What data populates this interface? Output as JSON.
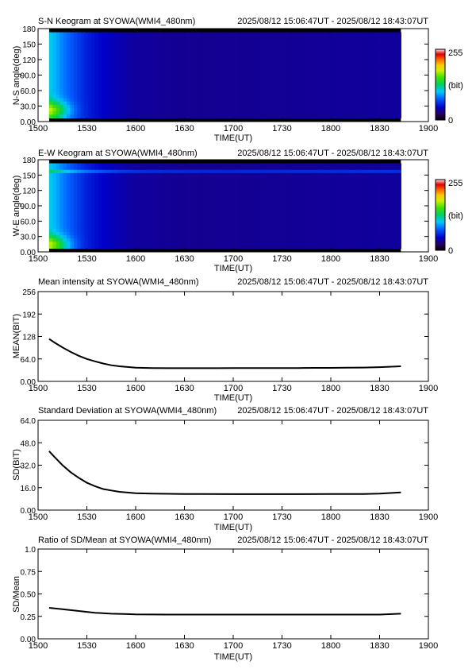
{
  "chart_data": [
    {
      "type": "heatmap",
      "title": "S-N Keogram at SYOWA(WMI4_480nm)",
      "time_range": "2025/08/12 15:06:47UT - 2025/08/12 18:43:07UT",
      "xlabel": "TIME(UT)",
      "ylabel": "N-S angle(deg)",
      "xlim": [
        0,
        240
      ],
      "ylim": [
        0,
        180
      ],
      "x_ticks": [
        0,
        30,
        60,
        90,
        120,
        150,
        180,
        210,
        240
      ],
      "x_tick_labels": [
        "1500",
        "1530",
        "1600",
        "1630",
        "1700",
        "1730",
        "1800",
        "1830",
        "1900"
      ],
      "y_ticks": [
        0,
        30,
        60,
        90,
        120,
        150,
        180
      ],
      "y_tick_labels": [
        "0.00",
        "30.0",
        "60.0",
        "90.0",
        "120",
        "150",
        "180"
      ],
      "data_x_range": [
        6.8,
        223.1
      ],
      "data_y_range": [
        7,
        173
      ],
      "colorbar": {
        "labels": [
          "255",
          "(bit)",
          "0"
        ],
        "range": [
          0,
          255
        ]
      },
      "hot_spot": {
        "x": 7,
        "y": 22
      },
      "hot_line_y": null,
      "intensity_profile": {
        "time": [
          6.8,
          10,
          15,
          20,
          25,
          30,
          40,
          50,
          60,
          80,
          100,
          150,
          223.1
        ],
        "level": [
          110,
          98,
          85,
          74,
          64,
          56,
          46,
          40,
          36,
          34,
          33,
          34,
          36
        ]
      }
    },
    {
      "type": "heatmap",
      "title": "E-W Keogram at SYOWA(WMI4_480nm)",
      "time_range": "2025/08/12 15:06:47UT - 2025/08/12 18:43:07UT",
      "xlabel": "TIME(UT)",
      "ylabel": "W-E angle(deg)",
      "xlim": [
        0,
        240
      ],
      "ylim": [
        0,
        180
      ],
      "x_ticks": [
        0,
        30,
        60,
        90,
        120,
        150,
        180,
        210,
        240
      ],
      "x_tick_labels": [
        "1500",
        "1530",
        "1600",
        "1630",
        "1700",
        "1730",
        "1800",
        "1830",
        "1900"
      ],
      "y_ticks": [
        0,
        30,
        60,
        90,
        120,
        150,
        180
      ],
      "y_tick_labels": [
        "0.00",
        "30.0",
        "60.0",
        "90.0",
        "120",
        "150",
        "180"
      ],
      "data_x_range": [
        6.8,
        223.1
      ],
      "data_y_range": [
        7,
        173
      ],
      "colorbar": {
        "labels": [
          "255",
          "(bit)",
          "0"
        ],
        "range": [
          0,
          255
        ]
      },
      "hot_spot": {
        "x": 7,
        "y": 14
      },
      "hot_line_y": 155,
      "intensity_profile": {
        "time": [
          6.8,
          10,
          15,
          20,
          25,
          30,
          40,
          50,
          60,
          80,
          100,
          150,
          223.1
        ],
        "level": [
          110,
          98,
          85,
          74,
          64,
          56,
          46,
          40,
          36,
          34,
          33,
          34,
          36
        ]
      }
    },
    {
      "type": "line",
      "title": "Mean intensity at SYOWA(WMI4_480nm)",
      "time_range": "2025/08/12 15:06:47UT - 2025/08/12 18:43:07UT",
      "xlabel": "TIME(UT)",
      "ylabel": "MEAN(BIT)",
      "xlim": [
        0,
        240
      ],
      "ylim": [
        0,
        256
      ],
      "x_ticks": [
        0,
        30,
        60,
        90,
        120,
        150,
        180,
        210,
        240
      ],
      "x_tick_labels": [
        "1500",
        "1530",
        "1600",
        "1630",
        "1700",
        "1730",
        "1800",
        "1830",
        "1900"
      ],
      "y_ticks": [
        0,
        64,
        128,
        192,
        256
      ],
      "y_tick_labels": [
        "0.00",
        "64.0",
        "128",
        "192",
        "256"
      ],
      "series": [
        {
          "x": [
            6.8,
            10,
            15,
            20,
            25,
            30,
            35,
            40,
            45,
            50,
            55,
            60,
            70,
            80,
            90,
            100,
            110,
            120,
            130,
            140,
            150,
            160,
            170,
            180,
            190,
            200,
            210,
            223.1
          ],
          "values": [
            121,
            111,
            97,
            84,
            73,
            64,
            57,
            51,
            46,
            43,
            41,
            39,
            38,
            37.5,
            37.5,
            37.5,
            37.5,
            38,
            38,
            38,
            38,
            38,
            38.5,
            38.5,
            39,
            39.5,
            40.5,
            43
          ]
        }
      ]
    },
    {
      "type": "line",
      "title": "Standard Deviation at SYOWA(WMI4_480nm)",
      "time_range": "2025/08/12 15:06:47UT - 2025/08/12 18:43:07UT",
      "xlabel": "TIME(UT)",
      "ylabel": "SD(BIT)",
      "xlim": [
        0,
        240
      ],
      "ylim": [
        0,
        64
      ],
      "x_ticks": [
        0,
        30,
        60,
        90,
        120,
        150,
        180,
        210,
        240
      ],
      "x_tick_labels": [
        "1500",
        "1530",
        "1600",
        "1630",
        "1700",
        "1730",
        "1800",
        "1830",
        "1900"
      ],
      "y_ticks": [
        0,
        16,
        32,
        48,
        64
      ],
      "y_tick_labels": [
        "0.00",
        "16.0",
        "32.0",
        "48.0",
        "64.0"
      ],
      "series": [
        {
          "x": [
            6.8,
            10,
            15,
            20,
            25,
            30,
            35,
            40,
            45,
            50,
            55,
            60,
            70,
            80,
            90,
            100,
            120,
            140,
            160,
            180,
            200,
            210,
            223.1
          ],
          "values": [
            42,
            38,
            32,
            27,
            23,
            19.5,
            17,
            15,
            14,
            13,
            12.5,
            12,
            11.8,
            11.6,
            11.5,
            11.5,
            11.4,
            11.4,
            11.4,
            11.5,
            11.5,
            11.8,
            12.6
          ]
        }
      ]
    },
    {
      "type": "line",
      "title": "Ratio of SD/Mean at SYOWA(WMI4_480nm)",
      "time_range": "2025/08/12 15:06:47UT - 2025/08/12 18:43:07UT",
      "xlabel": "TIME(UT)",
      "ylabel": "SD/Mean",
      "xlim": [
        0,
        240
      ],
      "ylim": [
        0,
        1
      ],
      "x_ticks": [
        0,
        30,
        60,
        90,
        120,
        150,
        180,
        210,
        240
      ],
      "x_tick_labels": [
        "1500",
        "1530",
        "1600",
        "1630",
        "1700",
        "1730",
        "1800",
        "1830",
        "1900"
      ],
      "y_ticks": [
        0,
        0.25,
        0.5,
        0.75,
        1
      ],
      "y_tick_labels": [
        "0.00",
        "0.25",
        "0.50",
        "0.75",
        "1.0"
      ],
      "series": [
        {
          "x": [
            6.8,
            15,
            25,
            35,
            45,
            55,
            60,
            80,
            100,
            120,
            150,
            180,
            210,
            223.1
          ],
          "values": [
            0.345,
            0.33,
            0.31,
            0.29,
            0.28,
            0.275,
            0.272,
            0.27,
            0.27,
            0.27,
            0.27,
            0.27,
            0.27,
            0.28
          ]
        }
      ]
    }
  ]
}
